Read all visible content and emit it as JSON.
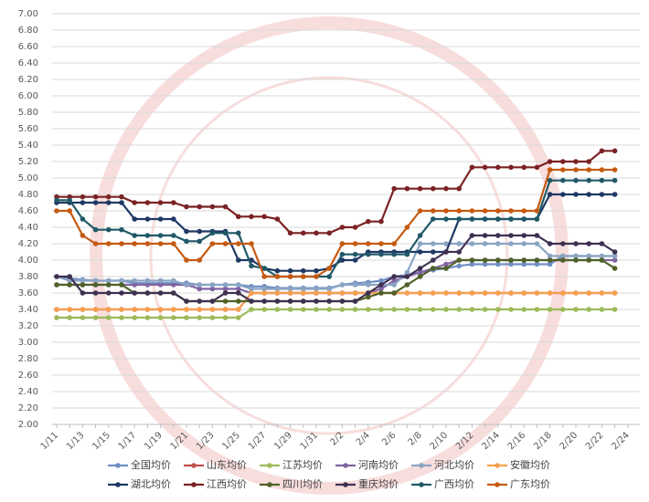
{
  "chart_data": {
    "type": "line",
    "categories": [
      "1/11",
      null,
      "1/13",
      null,
      "1/15",
      null,
      "1/17",
      null,
      "1/19",
      null,
      "1/21",
      null,
      "1/23",
      null,
      "1/25",
      null,
      "1/27",
      null,
      "1/29",
      null,
      "1/31",
      null,
      "2/2",
      null,
      "2/4",
      null,
      "2/6",
      null,
      "2/8",
      null,
      "2/10",
      null,
      "2/12",
      null,
      "2/14",
      null,
      "2/16",
      null,
      "2/18",
      null,
      "2/20",
      null,
      "2/22",
      null,
      "2/24"
    ],
    "ylim": [
      2,
      7
    ],
    "yticks": [
      {
        "value": 2,
        "label": "2.00"
      },
      {
        "value": 2.2,
        "label": "2.20"
      },
      {
        "value": 2.4,
        "label": "2.40"
      },
      {
        "value": 2.6,
        "label": "2.60"
      },
      {
        "value": 2.8,
        "label": "2.80"
      },
      {
        "value": 3,
        "label": "3.00"
      },
      {
        "value": 3.2,
        "label": "3.20"
      },
      {
        "value": 3.4,
        "label": "3.40"
      },
      {
        "value": 3.6,
        "label": "3.60"
      },
      {
        "value": 3.8,
        "label": "3.80"
      },
      {
        "value": 4,
        "label": "4.00"
      },
      {
        "value": 4.2,
        "label": "4.20"
      },
      {
        "value": 4.4,
        "label": "4.40"
      },
      {
        "value": 4.6,
        "label": "4.60"
      },
      {
        "value": 4.8,
        "label": "4.80"
      },
      {
        "value": 5,
        "label": "5.00"
      },
      {
        "value": 5.2,
        "label": "5.20"
      },
      {
        "value": 5.4,
        "label": "5.40"
      },
      {
        "value": 5.6,
        "label": "5.60"
      },
      {
        "value": 5.8,
        "label": "5.80"
      },
      {
        "value": 6,
        "label": "6.00"
      },
      {
        "value": 6.2,
        "label": "6.20"
      },
      {
        "value": 6.4,
        "label": "6.40"
      },
      {
        "value": 6.6,
        "label": "6.60"
      },
      {
        "value": 6.8,
        "label": "6.80"
      },
      {
        "value": 7,
        "label": "7.00"
      }
    ],
    "grid": true,
    "legend": "bottom",
    "series": [
      {
        "name": "全国均价",
        "color": "#6f8fc4",
        "values": [
          3.8,
          3.78,
          3.76,
          3.75,
          3.75,
          3.75,
          3.72,
          3.72,
          3.72,
          3.72,
          3.72,
          3.7,
          3.7,
          3.7,
          3.7,
          3.68,
          3.68,
          3.66,
          3.66,
          3.66,
          3.66,
          3.66,
          3.7,
          3.72,
          3.73,
          3.75,
          3.8,
          3.82,
          3.85,
          3.88,
          3.9,
          3.93,
          3.95,
          3.95,
          3.95,
          3.95,
          3.95,
          3.95,
          3.95,
          4.05,
          4.05,
          4.05,
          4.05,
          4.05,
          null
        ]
      },
      {
        "name": "山东均价",
        "color": "#c0504d",
        "values": [
          3.4,
          3.4,
          3.4,
          3.4,
          3.4,
          3.4,
          3.4,
          3.4,
          3.4,
          3.4,
          3.4,
          3.4,
          3.4,
          3.4,
          3.4,
          3.6,
          3.6,
          3.6,
          3.6,
          3.6,
          3.6,
          3.6,
          3.6,
          3.6,
          3.6,
          3.6,
          3.6,
          3.6,
          3.6,
          3.6,
          3.6,
          3.6,
          3.6,
          3.6,
          3.6,
          3.6,
          3.6,
          3.6,
          3.6,
          3.6,
          3.6,
          3.6,
          3.6,
          3.6,
          null
        ]
      },
      {
        "name": "江苏均价",
        "color": "#9bbb59",
        "values": [
          3.3,
          3.3,
          3.3,
          3.3,
          3.3,
          3.3,
          3.3,
          3.3,
          3.3,
          3.3,
          3.3,
          3.3,
          3.3,
          3.3,
          3.3,
          3.4,
          3.4,
          3.4,
          3.4,
          3.4,
          3.4,
          3.4,
          3.4,
          3.4,
          3.4,
          3.4,
          3.4,
          3.4,
          3.4,
          3.4,
          3.4,
          3.4,
          3.4,
          3.4,
          3.4,
          3.4,
          3.4,
          3.4,
          3.4,
          3.4,
          3.4,
          3.4,
          3.4,
          3.4,
          null
        ]
      },
      {
        "name": "河南均价",
        "color": "#8064a2",
        "values": [
          3.7,
          3.7,
          3.7,
          3.7,
          3.7,
          3.7,
          3.7,
          3.7,
          3.7,
          3.7,
          3.7,
          3.65,
          3.65,
          3.65,
          3.65,
          3.6,
          3.6,
          3.6,
          3.6,
          3.6,
          3.6,
          3.6,
          3.6,
          3.6,
          3.6,
          3.65,
          3.75,
          3.8,
          3.85,
          3.9,
          3.95,
          4.0,
          4.0,
          4.0,
          4.0,
          4.0,
          4.0,
          4.0,
          4.0,
          4.0,
          4.0,
          4.0,
          4.0,
          4.0,
          null
        ]
      },
      {
        "name": "河北均价",
        "color": "#8aa4c4",
        "values": [
          3.8,
          3.75,
          3.75,
          3.75,
          3.75,
          3.75,
          3.75,
          3.75,
          3.75,
          3.75,
          3.7,
          3.7,
          3.7,
          3.7,
          3.7,
          3.65,
          3.65,
          3.65,
          3.65,
          3.65,
          3.65,
          3.65,
          3.7,
          3.7,
          3.7,
          3.7,
          3.7,
          3.85,
          4.2,
          4.2,
          4.2,
          4.2,
          4.2,
          4.2,
          4.2,
          4.2,
          4.2,
          4.2,
          4.05,
          4.05,
          4.05,
          4.05,
          4.05,
          4.05,
          null
        ]
      },
      {
        "name": "安徽均价",
        "color": "#f5a050",
        "values": [
          3.4,
          3.4,
          3.4,
          3.4,
          3.4,
          3.4,
          3.4,
          3.4,
          3.4,
          3.4,
          3.4,
          3.4,
          3.4,
          3.4,
          3.4,
          3.6,
          3.6,
          3.6,
          3.6,
          3.6,
          3.6,
          3.6,
          3.6,
          3.6,
          3.6,
          3.6,
          3.6,
          3.6,
          3.6,
          3.6,
          3.6,
          3.6,
          3.6,
          3.6,
          3.6,
          3.6,
          3.6,
          3.6,
          3.6,
          3.6,
          3.6,
          3.6,
          3.6,
          3.6,
          null
        ]
      },
      {
        "name": "湖北均价",
        "color": "#1f3864",
        "values": [
          4.7,
          4.7,
          4.7,
          4.7,
          4.7,
          4.7,
          4.5,
          4.5,
          4.5,
          4.5,
          4.35,
          4.35,
          4.35,
          4.35,
          4.0,
          4.0,
          3.9,
          3.87,
          3.87,
          3.87,
          3.87,
          3.9,
          4.0,
          4.0,
          4.1,
          4.1,
          4.1,
          4.1,
          4.1,
          4.1,
          4.1,
          4.5,
          4.5,
          4.5,
          4.5,
          4.5,
          4.5,
          4.5,
          4.8,
          4.8,
          4.8,
          4.8,
          4.8,
          4.8,
          null
        ]
      },
      {
        "name": "江西均价",
        "color": "#7b2224",
        "values": [
          4.77,
          4.77,
          4.77,
          4.77,
          4.77,
          4.77,
          4.7,
          4.7,
          4.7,
          4.7,
          4.65,
          4.65,
          4.65,
          4.65,
          4.53,
          4.53,
          4.53,
          4.5,
          4.33,
          4.33,
          4.33,
          4.33,
          4.4,
          4.4,
          4.47,
          4.47,
          4.87,
          4.87,
          4.87,
          4.87,
          4.87,
          4.87,
          5.13,
          5.13,
          5.13,
          5.13,
          5.13,
          5.13,
          5.2,
          5.2,
          5.2,
          5.2,
          5.33,
          5.33,
          null
        ]
      },
      {
        "name": "四川均价",
        "color": "#4f6228",
        "values": [
          3.7,
          3.7,
          3.7,
          3.7,
          3.7,
          3.7,
          3.6,
          3.6,
          3.6,
          3.6,
          3.5,
          3.5,
          3.5,
          3.5,
          3.5,
          3.5,
          3.5,
          3.5,
          3.5,
          3.5,
          3.5,
          3.5,
          3.5,
          3.5,
          3.55,
          3.6,
          3.6,
          3.7,
          3.8,
          3.9,
          3.9,
          4.0,
          4.0,
          4.0,
          4.0,
          4.0,
          4.0,
          4.0,
          4.0,
          4.0,
          4.0,
          4.0,
          4.0,
          3.9,
          null
        ]
      },
      {
        "name": "重庆均价",
        "color": "#3f3151",
        "values": [
          3.8,
          3.8,
          3.6,
          3.6,
          3.6,
          3.6,
          3.6,
          3.6,
          3.6,
          3.6,
          3.5,
          3.5,
          3.5,
          3.6,
          3.6,
          3.5,
          3.5,
          3.5,
          3.5,
          3.5,
          3.5,
          3.5,
          3.5,
          3.5,
          3.6,
          3.7,
          3.8,
          3.8,
          3.9,
          4.0,
          4.1,
          4.1,
          4.3,
          4.3,
          4.3,
          4.3,
          4.3,
          4.3,
          4.2,
          4.2,
          4.2,
          4.2,
          4.2,
          4.1,
          null
        ]
      },
      {
        "name": "广西均价",
        "color": "#215968",
        "values": [
          4.73,
          4.73,
          4.5,
          4.37,
          4.37,
          4.37,
          4.3,
          4.3,
          4.3,
          4.3,
          4.23,
          4.23,
          4.33,
          4.33,
          4.33,
          3.93,
          3.9,
          3.8,
          3.8,
          3.8,
          3.8,
          3.8,
          4.07,
          4.07,
          4.07,
          4.07,
          4.07,
          4.07,
          4.3,
          4.5,
          4.5,
          4.5,
          4.5,
          4.5,
          4.5,
          4.5,
          4.5,
          4.5,
          4.97,
          4.97,
          4.97,
          4.97,
          4.97,
          4.97,
          null
        ]
      },
      {
        "name": "广东均价",
        "color": "#c55a11",
        "values": [
          4.6,
          4.6,
          4.3,
          4.2,
          4.2,
          4.2,
          4.2,
          4.2,
          4.2,
          4.2,
          4.0,
          4.0,
          4.2,
          4.2,
          4.2,
          4.2,
          3.8,
          3.8,
          3.8,
          3.8,
          3.8,
          3.9,
          4.2,
          4.2,
          4.2,
          4.2,
          4.2,
          4.4,
          4.6,
          4.6,
          4.6,
          4.6,
          4.6,
          4.6,
          4.6,
          4.6,
          4.6,
          4.6,
          5.1,
          5.1,
          5.1,
          5.1,
          5.1,
          5.1,
          null
        ]
      }
    ]
  }
}
